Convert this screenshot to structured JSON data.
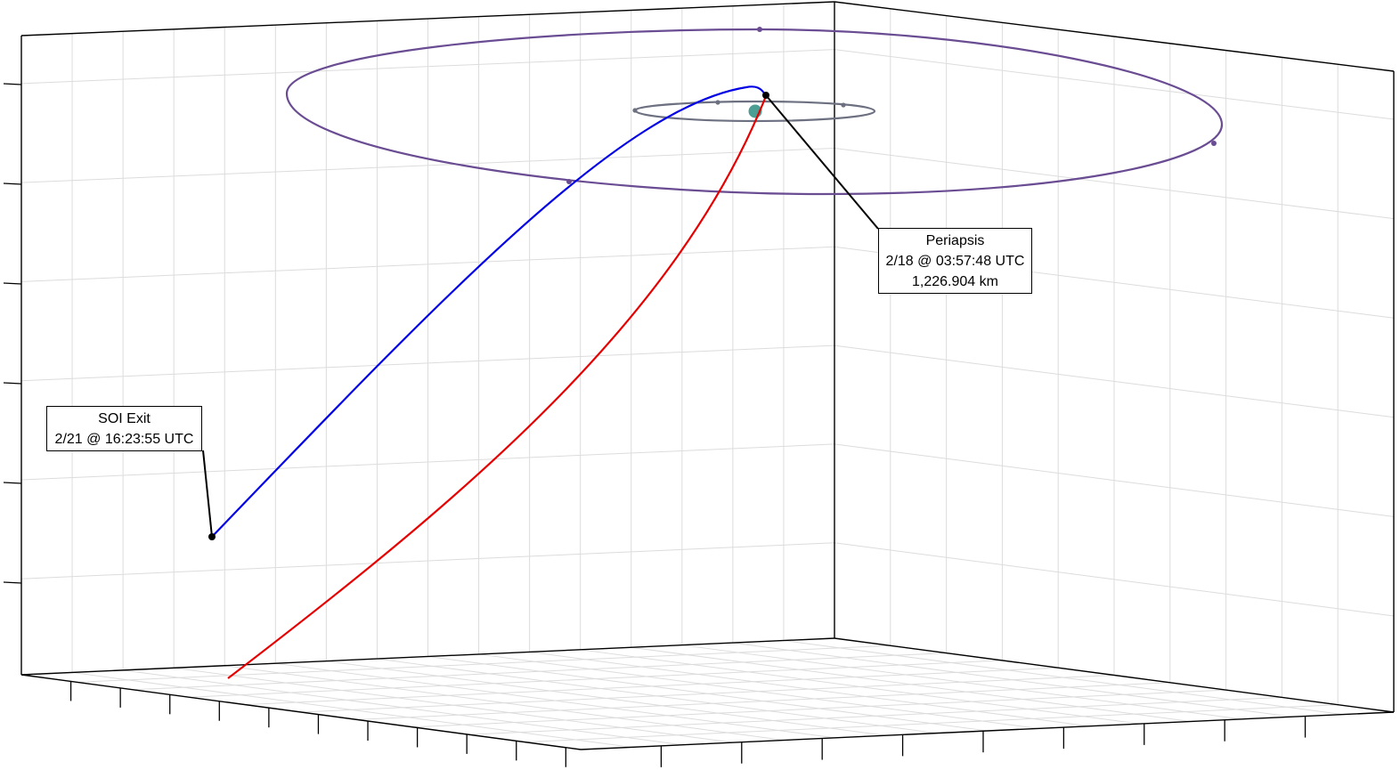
{
  "chart_data": {
    "type": "line",
    "view": "3d-perspective",
    "title": "",
    "xlabel": "",
    "ylabel": "",
    "zlabel": "",
    "grid": true,
    "legend": "none",
    "central_body": {
      "color": "#4a9e94"
    },
    "series": [
      {
        "role": "inbound-trajectory",
        "color": "#e60000"
      },
      {
        "role": "outbound-trajectory",
        "color": "#0000e6"
      },
      {
        "role": "outer-moon-orbit",
        "color": "#6a4c93"
      },
      {
        "role": "inner-moon-orbit",
        "color": "#6c7080"
      }
    ],
    "annotations": {
      "periapsis": {
        "label": "Periapsis",
        "time": "2/18 @ 03:57:48 UTC",
        "altitude": "1,226.904 km"
      },
      "soi_exit": {
        "label": "SOI Exit",
        "time": "2/21 @ 16:23:55 UTC"
      }
    }
  },
  "colors": {
    "axis": "#000000",
    "grid": "#dcdcdc",
    "periapsis_marker": "#000000"
  }
}
